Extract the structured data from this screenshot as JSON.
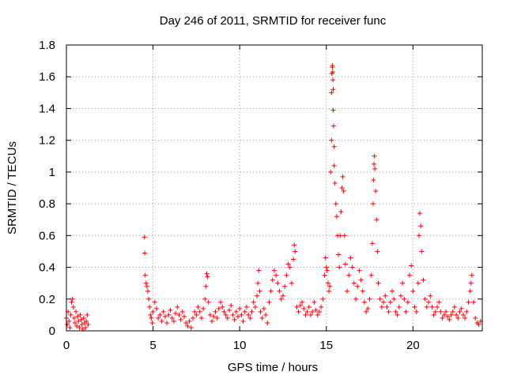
{
  "chart_data": {
    "type": "scatter",
    "title": "Day 246 of 2011, SRMTID for receiver func",
    "xlabel": "GPS time / hours",
    "ylabel": "SRMTID / TECUs",
    "xlim": [
      0,
      24
    ],
    "ylim": [
      0,
      1.8
    ],
    "x_ticks": [
      0,
      5,
      10,
      15,
      20
    ],
    "x_tick_labels": [
      "0",
      "5",
      "10",
      "15",
      "20"
    ],
    "y_ticks": [
      0,
      0.2,
      0.4,
      0.6,
      0.8,
      1.0,
      1.2,
      1.4,
      1.6,
      1.8
    ],
    "y_tick_labels": [
      "0",
      "0.2",
      "0.4",
      "0.6",
      "0.8",
      "1",
      "1.2",
      "1.4",
      "1.6",
      "1.8"
    ],
    "grid": true,
    "marker": "+",
    "color": "#ff0000",
    "series": [
      {
        "name": "SRMTID",
        "points": [
          [
            0.0,
            0.08
          ],
          [
            0.05,
            0.04
          ],
          [
            0.1,
            0.12
          ],
          [
            0.15,
            0.06
          ],
          [
            0.2,
            0.02
          ],
          [
            0.25,
            0.1
          ],
          [
            0.3,
            0.18
          ],
          [
            0.35,
            0.2
          ],
          [
            0.4,
            0.15
          ],
          [
            0.45,
            0.08
          ],
          [
            0.5,
            0.05
          ],
          [
            0.55,
            0.12
          ],
          [
            0.6,
            0.03
          ],
          [
            0.65,
            0.09
          ],
          [
            0.7,
            0.06
          ],
          [
            0.75,
            0.02
          ],
          [
            0.8,
            0.1
          ],
          [
            0.85,
            0.07
          ],
          [
            0.9,
            0.04
          ],
          [
            0.95,
            0.01
          ],
          [
            1.0,
            0.08
          ],
          [
            1.05,
            0.05
          ],
          [
            1.1,
            0.02
          ],
          [
            1.15,
            0.06
          ],
          [
            1.2,
            0.1
          ],
          [
            1.25,
            0.04
          ],
          [
            4.5,
            0.59
          ],
          [
            4.52,
            0.49
          ],
          [
            4.55,
            0.35
          ],
          [
            4.6,
            0.3
          ],
          [
            4.65,
            0.28
          ],
          [
            4.7,
            0.25
          ],
          [
            4.75,
            0.2
          ],
          [
            4.8,
            0.15
          ],
          [
            4.85,
            0.1
          ],
          [
            4.9,
            0.08
          ],
          [
            4.95,
            0.05
          ],
          [
            5.0,
            0.12
          ],
          [
            5.1,
            0.18
          ],
          [
            5.2,
            0.14
          ],
          [
            5.3,
            0.08
          ],
          [
            5.4,
            0.1
          ],
          [
            5.5,
            0.06
          ],
          [
            5.6,
            0.12
          ],
          [
            5.7,
            0.09
          ],
          [
            5.8,
            0.05
          ],
          [
            5.9,
            0.1
          ],
          [
            6.0,
            0.13
          ],
          [
            6.1,
            0.08
          ],
          [
            6.2,
            0.06
          ],
          [
            6.3,
            0.11
          ],
          [
            6.4,
            0.15
          ],
          [
            6.5,
            0.1
          ],
          [
            6.6,
            0.07
          ],
          [
            6.7,
            0.12
          ],
          [
            6.8,
            0.09
          ],
          [
            6.9,
            0.05
          ],
          [
            7.0,
            0.03
          ],
          [
            7.1,
            0.06
          ],
          [
            7.2,
            0.02
          ],
          [
            7.3,
            0.08
          ],
          [
            7.4,
            0.12
          ],
          [
            7.5,
            0.1
          ],
          [
            7.6,
            0.15
          ],
          [
            7.7,
            0.12
          ],
          [
            7.8,
            0.08
          ],
          [
            7.9,
            0.14
          ],
          [
            8.0,
            0.2
          ],
          [
            8.05,
            0.28
          ],
          [
            8.1,
            0.36
          ],
          [
            8.15,
            0.34
          ],
          [
            8.2,
            0.18
          ],
          [
            8.3,
            0.1
          ],
          [
            8.4,
            0.06
          ],
          [
            8.5,
            0.09
          ],
          [
            8.6,
            0.12
          ],
          [
            8.7,
            0.08
          ],
          [
            8.8,
            0.14
          ],
          [
            8.9,
            0.18
          ],
          [
            9.0,
            0.15
          ],
          [
            9.1,
            0.12
          ],
          [
            9.2,
            0.1
          ],
          [
            9.3,
            0.08
          ],
          [
            9.4,
            0.13
          ],
          [
            9.5,
            0.16
          ],
          [
            9.6,
            0.1
          ],
          [
            9.7,
            0.07
          ],
          [
            9.8,
            0.12
          ],
          [
            9.9,
            0.09
          ],
          [
            10.0,
            0.14
          ],
          [
            10.1,
            0.1
          ],
          [
            10.2,
            0.06
          ],
          [
            10.3,
            0.12
          ],
          [
            10.4,
            0.15
          ],
          [
            10.5,
            0.1
          ],
          [
            10.6,
            0.08
          ],
          [
            10.7,
            0.12
          ],
          [
            10.8,
            0.18
          ],
          [
            10.9,
            0.15
          ],
          [
            11.0,
            0.22
          ],
          [
            11.05,
            0.3
          ],
          [
            11.1,
            0.38
          ],
          [
            11.15,
            0.25
          ],
          [
            11.2,
            0.12
          ],
          [
            11.3,
            0.08
          ],
          [
            11.4,
            0.14
          ],
          [
            11.5,
            0.1
          ],
          [
            11.6,
            0.05
          ],
          [
            11.7,
            0.18
          ],
          [
            11.8,
            0.25
          ],
          [
            11.9,
            0.32
          ],
          [
            12.0,
            0.38
          ],
          [
            12.1,
            0.35
          ],
          [
            12.2,
            0.3
          ],
          [
            12.3,
            0.25
          ],
          [
            12.4,
            0.2
          ],
          [
            12.5,
            0.22
          ],
          [
            12.6,
            0.28
          ],
          [
            12.7,
            0.35
          ],
          [
            12.8,
            0.42
          ],
          [
            12.9,
            0.4
          ],
          [
            13.0,
            0.3
          ],
          [
            13.1,
            0.45
          ],
          [
            13.15,
            0.54
          ],
          [
            13.2,
            0.5
          ],
          [
            13.3,
            0.15
          ],
          [
            13.4,
            0.12
          ],
          [
            13.5,
            0.16
          ],
          [
            13.6,
            0.18
          ],
          [
            13.7,
            0.14
          ],
          [
            13.8,
            0.1
          ],
          [
            13.9,
            0.12
          ],
          [
            14.0,
            0.15
          ],
          [
            14.1,
            0.1
          ],
          [
            14.2,
            0.12
          ],
          [
            14.3,
            0.18
          ],
          [
            14.4,
            0.13
          ],
          [
            14.5,
            0.1
          ],
          [
            14.6,
            0.12
          ],
          [
            14.7,
            0.15
          ],
          [
            14.8,
            0.2
          ],
          [
            14.9,
            0.35
          ],
          [
            14.95,
            0.46
          ],
          [
            15.0,
            0.4
          ],
          [
            15.05,
            0.38
          ],
          [
            15.1,
            0.3
          ],
          [
            15.15,
            0.25
          ],
          [
            15.2,
            0.28
          ],
          [
            15.25,
            1.0
          ],
          [
            15.3,
            1.2
          ],
          [
            15.3,
            1.5
          ],
          [
            15.32,
            1.62
          ],
          [
            15.35,
            1.66
          ],
          [
            15.35,
            1.67
          ],
          [
            15.37,
            1.63
          ],
          [
            15.38,
            1.58
          ],
          [
            15.4,
            1.52
          ],
          [
            15.4,
            1.39
          ],
          [
            15.42,
            1.29
          ],
          [
            15.45,
            1.16
          ],
          [
            15.45,
            1.04
          ],
          [
            15.5,
            0.93
          ],
          [
            15.55,
            0.8
          ],
          [
            15.6,
            0.72
          ],
          [
            15.65,
            0.6
          ],
          [
            15.7,
            0.48
          ],
          [
            15.75,
            0.4
          ],
          [
            15.8,
            0.6
          ],
          [
            15.85,
            0.75
          ],
          [
            15.9,
            0.9
          ],
          [
            15.95,
            0.97
          ],
          [
            16.0,
            0.88
          ],
          [
            16.05,
            0.6
          ],
          [
            16.1,
            0.42
          ],
          [
            16.2,
            0.25
          ],
          [
            16.3,
            0.35
          ],
          [
            16.4,
            0.46
          ],
          [
            16.5,
            0.4
          ],
          [
            16.6,
            0.3
          ],
          [
            16.7,
            0.2
          ],
          [
            16.8,
            0.28
          ],
          [
            16.9,
            0.38
          ],
          [
            17.0,
            0.32
          ],
          [
            17.1,
            0.25
          ],
          [
            17.2,
            0.18
          ],
          [
            17.3,
            0.12
          ],
          [
            17.4,
            0.14
          ],
          [
            17.5,
            0.2
          ],
          [
            17.6,
            0.35
          ],
          [
            17.65,
            0.55
          ],
          [
            17.7,
            0.8
          ],
          [
            17.72,
            0.95
          ],
          [
            17.75,
            1.05
          ],
          [
            17.78,
            1.1
          ],
          [
            17.8,
            1.02
          ],
          [
            17.85,
            0.88
          ],
          [
            17.9,
            0.7
          ],
          [
            17.95,
            0.5
          ],
          [
            18.0,
            0.3
          ],
          [
            18.1,
            0.2
          ],
          [
            18.2,
            0.15
          ],
          [
            18.3,
            0.18
          ],
          [
            18.4,
            0.22
          ],
          [
            18.5,
            0.15
          ],
          [
            18.6,
            0.12
          ],
          [
            18.7,
            0.18
          ],
          [
            18.8,
            0.25
          ],
          [
            18.9,
            0.2
          ],
          [
            19.0,
            0.12
          ],
          [
            19.1,
            0.1
          ],
          [
            19.2,
            0.15
          ],
          [
            19.3,
            0.22
          ],
          [
            19.4,
            0.3
          ],
          [
            19.5,
            0.2
          ],
          [
            19.6,
            0.12
          ],
          [
            19.7,
            0.18
          ],
          [
            19.8,
            0.35
          ],
          [
            19.9,
            0.41
          ],
          [
            20.0,
            0.25
          ],
          [
            20.1,
            0.15
          ],
          [
            20.2,
            0.12
          ],
          [
            20.3,
            0.3
          ],
          [
            20.35,
            0.6
          ],
          [
            20.4,
            0.74
          ],
          [
            20.45,
            0.66
          ],
          [
            20.5,
            0.5
          ],
          [
            20.6,
            0.32
          ],
          [
            20.7,
            0.2
          ],
          [
            20.8,
            0.15
          ],
          [
            20.9,
            0.18
          ],
          [
            21.0,
            0.22
          ],
          [
            21.1,
            0.15
          ],
          [
            21.2,
            0.1
          ],
          [
            21.3,
            0.12
          ],
          [
            21.4,
            0.15
          ],
          [
            21.5,
            0.18
          ],
          [
            21.6,
            0.12
          ],
          [
            21.7,
            0.08
          ],
          [
            21.8,
            0.1
          ],
          [
            21.9,
            0.12
          ],
          [
            22.0,
            0.09
          ],
          [
            22.1,
            0.07
          ],
          [
            22.2,
            0.1
          ],
          [
            22.3,
            0.12
          ],
          [
            22.4,
            0.15
          ],
          [
            22.5,
            0.1
          ],
          [
            22.6,
            0.08
          ],
          [
            22.7,
            0.12
          ],
          [
            22.8,
            0.14
          ],
          [
            22.9,
            0.1
          ],
          [
            23.0,
            0.08
          ],
          [
            23.1,
            0.12
          ],
          [
            23.2,
            0.18
          ],
          [
            23.3,
            0.25
          ],
          [
            23.35,
            0.3
          ],
          [
            23.4,
            0.35
          ],
          [
            23.5,
            0.18
          ],
          [
            23.6,
            0.08
          ],
          [
            23.7,
            0.05
          ],
          [
            23.8,
            0.04
          ],
          [
            23.9,
            0.06
          ]
        ]
      }
    ]
  }
}
